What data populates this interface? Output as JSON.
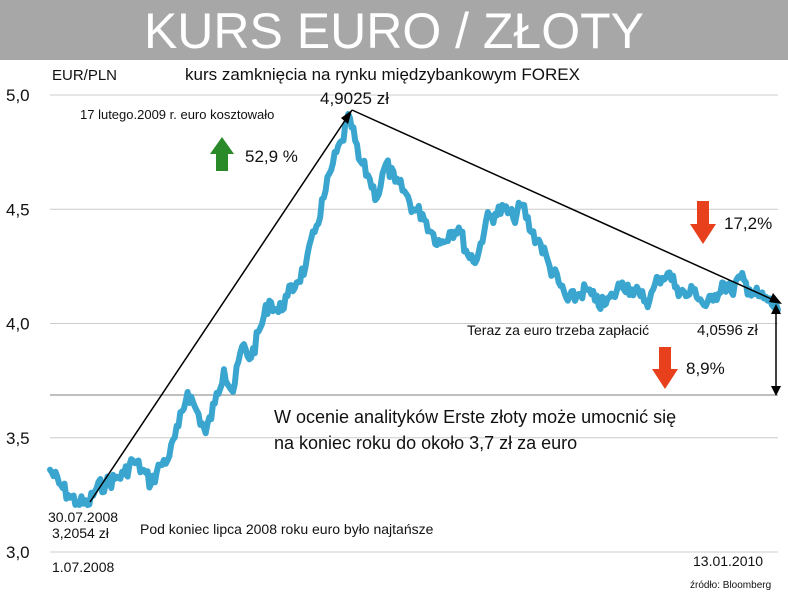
{
  "title": "KURS EURO / ZŁOTY",
  "chart_data": {
    "type": "line",
    "title": "KURS EURO / ZŁOTY",
    "subtitle": "kurs zamknięcia na rynku międzybankowym FOREX",
    "ylabel": "EUR/PLN",
    "xlabel": "",
    "ylim": [
      3.0,
      5.0
    ],
    "y_ticks": [
      "3,0",
      "3,5",
      "4,0",
      "4,5",
      "5,0"
    ],
    "y_tick_values": [
      3.0,
      3.5,
      4.0,
      4.5,
      5.0
    ],
    "x_start_label": "1.07.2008",
    "x_end_label": "13.01.2010",
    "x_range": [
      "2008-07-01",
      "2010-01-13"
    ],
    "grid": true,
    "line_color": "#3aa6d0",
    "series": [
      {
        "name": "",
        "x": [
          "2008-07-01",
          "2008-07-08",
          "2008-07-15",
          "2008-07-22",
          "2008-07-30",
          "2008-08-06",
          "2008-08-13",
          "2008-08-20",
          "2008-08-27",
          "2008-09-03",
          "2008-09-10",
          "2008-09-17",
          "2008-09-24",
          "2008-10-01",
          "2008-10-08",
          "2008-10-15",
          "2008-10-22",
          "2008-10-29",
          "2008-11-05",
          "2008-11-12",
          "2008-11-19",
          "2008-11-26",
          "2008-12-03",
          "2008-12-10",
          "2008-12-17",
          "2008-12-24",
          "2008-12-31",
          "2009-01-07",
          "2009-01-14",
          "2009-01-21",
          "2009-01-28",
          "2009-02-04",
          "2009-02-11",
          "2009-02-17",
          "2009-02-24",
          "2009-03-03",
          "2009-03-10",
          "2009-03-17",
          "2009-03-24",
          "2009-03-31",
          "2009-04-07",
          "2009-04-14",
          "2009-04-21",
          "2009-04-28",
          "2009-05-05",
          "2009-05-12",
          "2009-05-19",
          "2009-05-26",
          "2009-06-02",
          "2009-06-09",
          "2009-06-16",
          "2009-06-23",
          "2009-06-30",
          "2009-07-07",
          "2009-07-14",
          "2009-07-21",
          "2009-07-28",
          "2009-08-04",
          "2009-08-11",
          "2009-08-18",
          "2009-08-25",
          "2009-09-01",
          "2009-09-08",
          "2009-09-15",
          "2009-09-22",
          "2009-09-29",
          "2009-10-06",
          "2009-10-13",
          "2009-10-20",
          "2009-10-27",
          "2009-11-03",
          "2009-11-10",
          "2009-11-17",
          "2009-11-24",
          "2009-12-01",
          "2009-12-08",
          "2009-12-15",
          "2009-12-22",
          "2009-12-29",
          "2010-01-05",
          "2010-01-13"
        ],
        "values": [
          3.36,
          3.3,
          3.25,
          3.22,
          3.2054,
          3.28,
          3.3,
          3.32,
          3.34,
          3.4,
          3.36,
          3.3,
          3.38,
          3.42,
          3.55,
          3.7,
          3.62,
          3.52,
          3.65,
          3.8,
          3.7,
          3.9,
          3.85,
          3.98,
          4.1,
          4.05,
          4.12,
          4.18,
          4.25,
          4.4,
          4.55,
          4.7,
          4.8,
          4.9025,
          4.72,
          4.65,
          4.55,
          4.7,
          4.62,
          4.58,
          4.5,
          4.48,
          4.4,
          4.35,
          4.4,
          4.42,
          4.3,
          4.28,
          4.45,
          4.48,
          4.5,
          4.46,
          4.52,
          4.4,
          4.35,
          4.25,
          4.18,
          4.1,
          4.12,
          4.15,
          4.1,
          4.08,
          4.12,
          4.18,
          4.15,
          4.12,
          4.1,
          4.2,
          4.22,
          4.16,
          4.12,
          4.15,
          4.08,
          4.1,
          4.18,
          4.14,
          4.2,
          4.15,
          4.12,
          4.1,
          4.0596
        ]
      }
    ],
    "annotations": {
      "peak_text": "17 lutego.2009 r. euro kosztowało",
      "peak_value": "4,9025 zł",
      "rise_pct": "52,9 %",
      "fall_pct": "17,2%",
      "now_text": "Teraz za euro trzeba zapłacić",
      "now_value": "4,0596 zł",
      "forecast_pct": "8,9%",
      "forecast_line1": "W ocenie analityków Erste złoty może umocnić się",
      "forecast_line2": "na koniec roku do około 3,7 zł za euro",
      "forecast_level": 3.7,
      "low_date": "30.07.2008",
      "low_value": "3,2054 zł",
      "low_text": "Pod koniec lipca 2008 roku euro było najtańsze",
      "source": "źródło: Bloomberg"
    },
    "colors": {
      "up_arrow": "#2a8a2a",
      "down_arrow": "#e8401c",
      "title_bg": "#a7a7a7",
      "grid": "#cccccc",
      "forecast_line": "#aaaaaa"
    }
  }
}
